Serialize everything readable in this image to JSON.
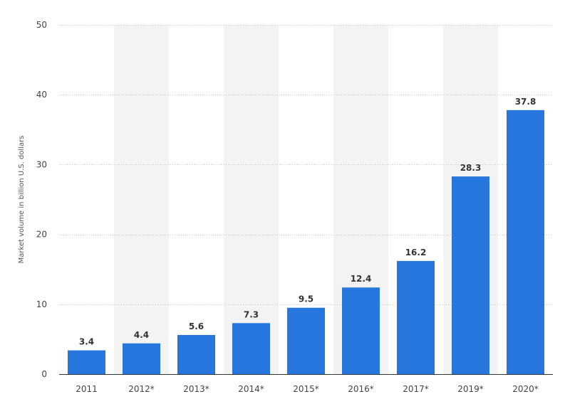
{
  "chart_data": {
    "type": "bar",
    "categories": [
      "2011",
      "2012*",
      "2013*",
      "2014*",
      "2015*",
      "2016*",
      "2017*",
      "2019*",
      "2020*"
    ],
    "values": [
      3.4,
      4.4,
      5.6,
      7.3,
      9.5,
      12.4,
      16.2,
      28.3,
      37.8
    ],
    "value_labels": [
      "3.4",
      "4.4",
      "5.6",
      "7.3",
      "9.5",
      "12.4",
      "16.2",
      "28.3",
      "37.8"
    ],
    "title": "",
    "xlabel": "",
    "ylabel": "Market volume in billion U.S. dollars",
    "ylim": [
      0,
      50
    ],
    "yticks": [
      0,
      10,
      20,
      30,
      40,
      50
    ],
    "ytick_labels": [
      "0",
      "10",
      "20",
      "30",
      "40",
      "50"
    ],
    "grid": true,
    "grid_style": "dotted-horizontal",
    "alternating_column_shading": true,
    "legend": "none"
  },
  "colors": {
    "bar": "#2776dd",
    "grid": "#c9c9c9",
    "band": "#f3f3f3",
    "axis": "#333333",
    "text": "#444444"
  }
}
